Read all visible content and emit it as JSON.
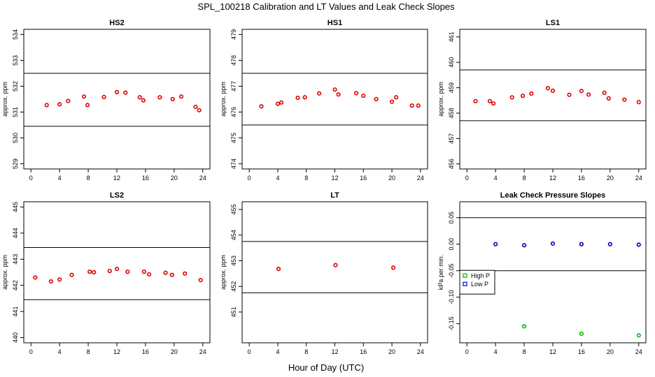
{
  "title": "SPL_100218  Calibration and LT Values and Leak Check Slopes",
  "xlabel": "Hour of Day (UTC)",
  "chart_data": [
    {
      "type": "scatter",
      "title": "HS2",
      "ylabel": "approx. ppm",
      "xlim": [
        -1,
        25
      ],
      "ylim": [
        528.8,
        534.2
      ],
      "xticks": [
        0,
        4,
        8,
        12,
        16,
        20,
        24
      ],
      "yticks": [
        529,
        530,
        531,
        532,
        533,
        534
      ],
      "hlines": [
        532.5,
        530.45
      ],
      "series": [
        {
          "color": "#dd0000",
          "marker": "circle",
          "x": [
            2.2,
            4.0,
            5.2,
            7.4,
            7.9,
            10.2,
            12.0,
            13.2,
            15.2,
            15.7,
            18.0,
            19.8,
            21.0,
            23.0,
            23.5
          ],
          "y": [
            531.27,
            531.3,
            531.43,
            531.6,
            531.27,
            531.58,
            531.77,
            531.75,
            531.57,
            531.45,
            531.57,
            531.5,
            531.6,
            531.2,
            531.07
          ]
        }
      ]
    },
    {
      "type": "scatter",
      "title": "HS1",
      "ylabel": "approx. ppm",
      "xlim": [
        -1,
        25
      ],
      "ylim": [
        473.8,
        479.2
      ],
      "xticks": [
        0,
        4,
        8,
        12,
        16,
        20,
        24
      ],
      "yticks": [
        474,
        475,
        476,
        477,
        478,
        479
      ],
      "hlines": [
        477.5,
        475.5
      ],
      "series": [
        {
          "color": "#dd0000",
          "marker": "circle",
          "x": [
            1.7,
            4.0,
            4.5,
            6.8,
            7.8,
            9.8,
            12.0,
            12.5,
            15.0,
            16.0,
            17.8,
            20.0,
            20.6,
            22.8,
            23.7
          ],
          "y": [
            476.22,
            476.32,
            476.37,
            476.55,
            476.57,
            476.72,
            476.87,
            476.68,
            476.73,
            476.63,
            476.5,
            476.4,
            476.57,
            476.25,
            476.25
          ]
        }
      ]
    },
    {
      "type": "scatter",
      "title": "LS1",
      "ylabel": "approx. ppm",
      "xlim": [
        -1,
        25
      ],
      "ylim": [
        455.8,
        461.3
      ],
      "xticks": [
        0,
        4,
        8,
        12,
        16,
        20,
        24
      ],
      "yticks": [
        456,
        457,
        458,
        459,
        460,
        461
      ],
      "hlines": [
        459.7,
        457.7
      ],
      "series": [
        {
          "color": "#dd0000",
          "marker": "circle",
          "x": [
            1.2,
            3.2,
            3.7,
            6.3,
            7.8,
            9.0,
            11.3,
            12.0,
            14.3,
            16.0,
            17.0,
            19.2,
            19.8,
            22.0,
            24.0
          ],
          "y": [
            458.47,
            458.47,
            458.38,
            458.62,
            458.68,
            458.77,
            458.98,
            458.88,
            458.72,
            458.87,
            458.73,
            458.8,
            458.58,
            458.53,
            458.43
          ]
        }
      ]
    },
    {
      "type": "scatter",
      "title": "LS2",
      "ylabel": "approx. ppm",
      "xlim": [
        -1,
        25
      ],
      "ylim": [
        439.8,
        445.2
      ],
      "xticks": [
        0,
        4,
        8,
        12,
        16,
        20,
        24
      ],
      "yticks": [
        440,
        441,
        442,
        443,
        444,
        445
      ],
      "hlines": [
        443.45,
        441.45
      ],
      "series": [
        {
          "color": "#dd0000",
          "marker": "circle",
          "x": [
            0.6,
            2.8,
            4.0,
            5.7,
            8.2,
            8.8,
            11.0,
            12.0,
            13.5,
            15.8,
            16.5,
            18.8,
            19.7,
            21.5,
            23.7
          ],
          "y": [
            442.3,
            442.15,
            442.22,
            442.4,
            442.52,
            442.5,
            442.55,
            442.63,
            442.52,
            442.52,
            442.42,
            442.48,
            442.4,
            442.45,
            442.2
          ]
        }
      ]
    },
    {
      "type": "scatter",
      "title": "LT",
      "ylabel": "approx. ppm",
      "xlim": [
        -1,
        25
      ],
      "ylim": [
        449.8,
        455.3
      ],
      "xticks": [
        0,
        4,
        8,
        12,
        16,
        20,
        24
      ],
      "yticks": [
        451,
        452,
        453,
        454,
        455
      ],
      "hlines": [
        453.75,
        451.75
      ],
      "series": [
        {
          "color": "#dd0000",
          "marker": "circle",
          "x": [
            4.1,
            12.1,
            20.2
          ],
          "y": [
            452.68,
            452.83,
            452.73
          ]
        }
      ]
    },
    {
      "type": "scatter",
      "title": "Leak Check Pressure Slopes",
      "ylabel": "kPa per min.",
      "xlim": [
        -1,
        25
      ],
      "ylim": [
        -0.186,
        0.08
      ],
      "xticks": [
        0,
        4,
        8,
        12,
        16,
        20,
        24
      ],
      "yticks": [
        0.05,
        0.0,
        -0.05,
        -0.1,
        -0.15
      ],
      "ytick_labels": [
        "0.05",
        "0.00",
        "-0.05",
        "-0.10",
        "-0.15"
      ],
      "hlines": [
        0.05,
        -0.05
      ],
      "legend": "left",
      "series": [
        {
          "name": "High P",
          "color": "#00bb00",
          "marker": "circle",
          "x": [
            8.0,
            16.0,
            24.0
          ],
          "y": [
            -0.155,
            -0.169,
            -0.172
          ]
        },
        {
          "name": "Low P",
          "color": "#0000cc",
          "marker": "circle",
          "x": [
            4.0,
            8.0,
            12.0,
            16.0,
            20.0,
            24.0
          ],
          "y": [
            0.0,
            -0.002,
            0.001,
            0.0,
            0.0,
            -0.001
          ]
        }
      ]
    }
  ]
}
